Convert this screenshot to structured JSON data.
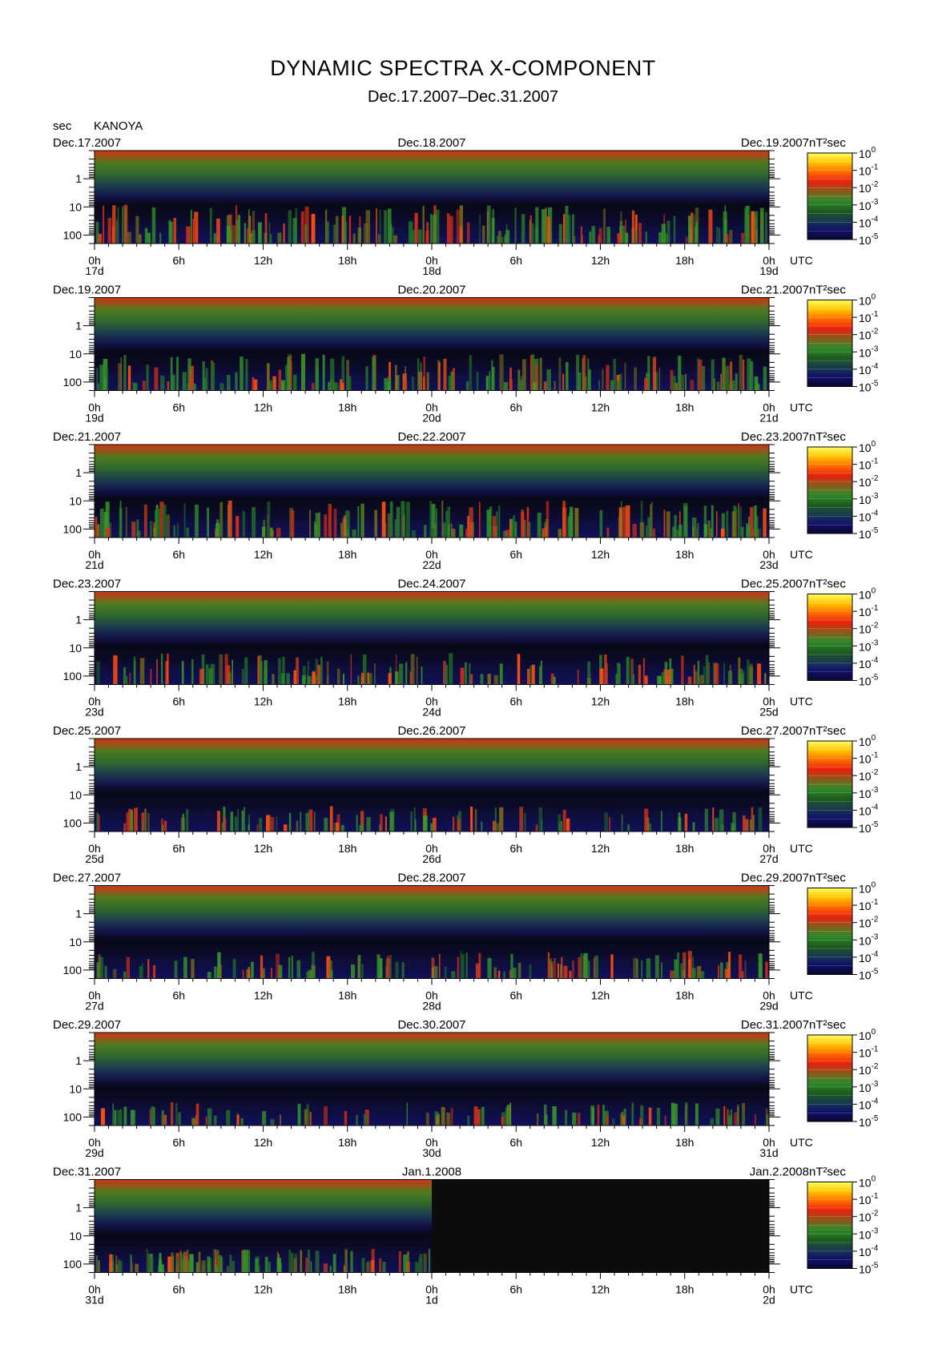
{
  "chart_data": {
    "type": "heatmap",
    "title": "DYNAMIC SPECTRA X-COMPONENT",
    "subtitle": "Dec.17.2007–Dec.31.2007",
    "station": "KANOYA",
    "y_unit": "sec",
    "y_scale": "log",
    "y_ticks": [
      "1",
      "10",
      "100"
    ],
    "x_ticks": [
      "0h",
      "6h",
      "12h",
      "18h",
      "0h",
      "6h",
      "12h",
      "18h",
      "0h"
    ],
    "x_suffix": "UTC",
    "colorbar": {
      "unit": "nT²sec",
      "tick_base": "10",
      "exponents": [
        "0",
        "-1",
        "-2",
        "-3",
        "-4",
        "-5"
      ],
      "colors": [
        "#ffff66",
        "#ffc400",
        "#ff6a00",
        "#e82010",
        "#8a5a18",
        "#2f8a2a",
        "#1c5c1c",
        "#183c4c",
        "#10106a",
        "#080830"
      ]
    },
    "panels": [
      {
        "date_left": "Dec.17.2007",
        "date_mid": "Dec.18.2007",
        "date_right": "Dec.19.2007",
        "day_left": "17d",
        "day_mid": "18d",
        "day_right": "19d",
        "activity": 0.85,
        "blank_after_hour": null
      },
      {
        "date_left": "Dec.19.2007",
        "date_mid": "Dec.20.2007",
        "date_right": "Dec.21.2007",
        "day_left": "19d",
        "day_mid": "20d",
        "day_right": "21d",
        "activity": 0.8,
        "blank_after_hour": null
      },
      {
        "date_left": "Dec.21.2007",
        "date_mid": "Dec.22.2007",
        "date_right": "Dec.23.2007",
        "day_left": "21d",
        "day_mid": "22d",
        "day_right": "23d",
        "activity": 0.8,
        "blank_after_hour": null
      },
      {
        "date_left": "Dec.23.2007",
        "date_mid": "Dec.24.2007",
        "date_right": "Dec.25.2007",
        "day_left": "23d",
        "day_mid": "24d",
        "day_right": "25d",
        "activity": 0.65,
        "blank_after_hour": null
      },
      {
        "date_left": "Dec.25.2007",
        "date_mid": "Dec.26.2007",
        "date_right": "Dec.27.2007",
        "day_left": "25d",
        "day_mid": "26d",
        "day_right": "27d",
        "activity": 0.5,
        "blank_after_hour": null
      },
      {
        "date_left": "Dec.27.2007",
        "date_mid": "Dec.28.2007",
        "date_right": "Dec.29.2007",
        "day_left": "27d",
        "day_mid": "28d",
        "day_right": "29d",
        "activity": 0.55,
        "blank_after_hour": null
      },
      {
        "date_left": "Dec.29.2007",
        "date_mid": "Dec.30.2007",
        "date_right": "Dec.31.2007",
        "day_left": "29d",
        "day_mid": "30d",
        "day_right": "31d",
        "activity": 0.45,
        "blank_after_hour": null
      },
      {
        "date_left": "Dec.31.2007",
        "date_mid": "Jan.1.2008",
        "date_right": "Jan.2.2008",
        "day_left": "31d",
        "day_mid": "1d",
        "day_right": "2d",
        "activity": 0.45,
        "blank_after_hour": 24
      }
    ]
  }
}
